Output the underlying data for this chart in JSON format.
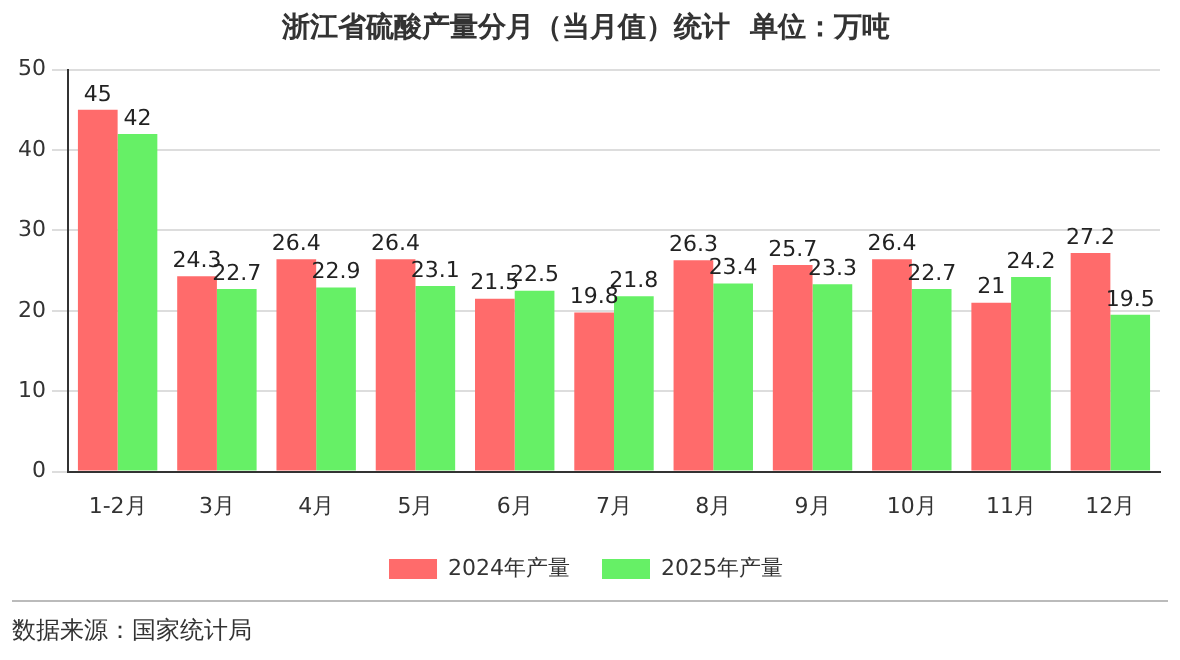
{
  "chart_data": {
    "type": "bar",
    "title": "浙江省硫酸产量分月（当月值）统计  单位：万吨",
    "categories": [
      "1-2月",
      "3月",
      "4月",
      "5月",
      "6月",
      "7月",
      "8月",
      "9月",
      "10月",
      "11月",
      "12月"
    ],
    "series": [
      {
        "name": "2024年产量",
        "color": "#ff6b6b",
        "values": [
          45,
          24.3,
          26.4,
          26.4,
          21.5,
          19.8,
          26.3,
          25.7,
          26.4,
          21,
          27.2
        ]
      },
      {
        "name": "2025年产量",
        "color": "#66f066",
        "values": [
          42,
          22.7,
          22.9,
          23.1,
          22.5,
          21.8,
          23.4,
          23.3,
          22.7,
          24.2,
          19.5
        ]
      }
    ],
    "ylim": [
      0,
      50
    ],
    "yticks": [
      0,
      10,
      20,
      30,
      40,
      50
    ],
    "grid": "y",
    "legend": "bottom",
    "data_labels": true,
    "annotations": [
      "数据来源：国家统计局"
    ]
  }
}
